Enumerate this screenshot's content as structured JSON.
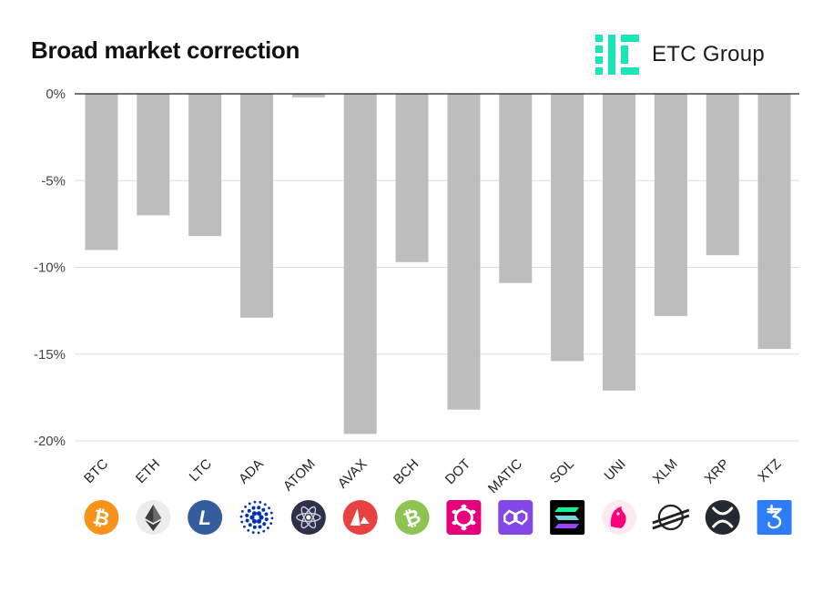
{
  "title": "Broad market correction",
  "brand": {
    "name": "ETC Group",
    "color": "#19e6b4"
  },
  "chart_data": {
    "type": "bar",
    "title": "Broad market correction",
    "xlabel": "",
    "ylabel": "",
    "ylim": [
      -20,
      0
    ],
    "yticks": [
      0,
      -5,
      -10,
      -15,
      -20
    ],
    "ytick_labels": [
      "0%",
      "-5%",
      "-10%",
      "-15%",
      "-20%"
    ],
    "grid": true,
    "bar_color": "#bdbdbd",
    "categories": [
      "BTC",
      "ETH",
      "LTC",
      "ADA",
      "ATOM",
      "AVAX",
      "BCH",
      "DOT",
      "MATIC",
      "SOL",
      "UNI",
      "XLM",
      "XRP",
      "XTZ"
    ],
    "values": [
      -9.0,
      -7.0,
      -8.2,
      -12.9,
      -0.2,
      -19.6,
      -9.7,
      -18.2,
      -10.9,
      -15.4,
      -17.1,
      -12.8,
      -9.3,
      -14.7
    ]
  },
  "coin_icons": [
    {
      "name": "btc-icon",
      "color": "#f7931a"
    },
    {
      "name": "eth-icon",
      "color": "#ececec"
    },
    {
      "name": "ltc-icon",
      "color": "#345d9d"
    },
    {
      "name": "ada-icon",
      "color": "#0033ad"
    },
    {
      "name": "atom-icon",
      "color": "#2e3148"
    },
    {
      "name": "avax-icon",
      "color": "#e84142"
    },
    {
      "name": "bch-icon",
      "color": "#8dc351"
    },
    {
      "name": "dot-icon",
      "color": "#e6007a"
    },
    {
      "name": "matic-icon",
      "color": "#8247e5"
    },
    {
      "name": "sol-icon",
      "color": "#000000"
    },
    {
      "name": "uni-icon",
      "color": "#ff007a"
    },
    {
      "name": "xlm-icon",
      "color": "#000000"
    },
    {
      "name": "xrp-icon",
      "color": "#23292f"
    },
    {
      "name": "xtz-icon",
      "color": "#2c7df7"
    }
  ]
}
